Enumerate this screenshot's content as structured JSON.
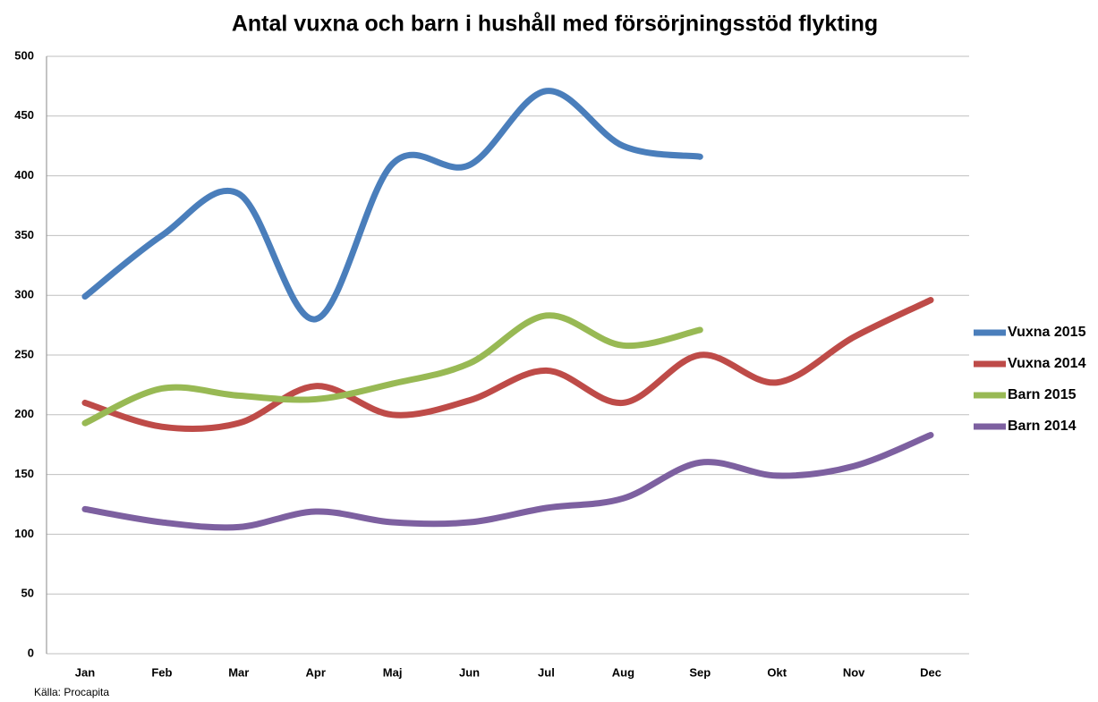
{
  "chart_data": {
    "type": "line",
    "title": "Antal vuxna och barn i hushåll med försörjningsstöd flykting",
    "source": "Källa: Procapita",
    "categories": [
      "Jan",
      "Feb",
      "Mar",
      "Apr",
      "Maj",
      "Jun",
      "Jul",
      "Aug",
      "Sep",
      "Okt",
      "Nov",
      "Dec"
    ],
    "series": [
      {
        "name": "Vuxna 2015",
        "color": "#4a7ebb",
        "values": [
          299,
          350,
          385,
          280,
          410,
          409,
          471,
          425,
          416,
          null,
          null,
          null
        ]
      },
      {
        "name": "Vuxna 2014",
        "color": "#be4b48",
        "values": [
          210,
          190,
          193,
          224,
          200,
          212,
          237,
          210,
          250,
          227,
          265,
          296
        ]
      },
      {
        "name": "Barn 2015",
        "color": "#98b954",
        "values": [
          193,
          222,
          216,
          213,
          226,
          243,
          283,
          258,
          271,
          null,
          null,
          null
        ]
      },
      {
        "name": "Barn 2014",
        "color": "#7d60a0",
        "values": [
          121,
          110,
          106,
          119,
          110,
          110,
          122,
          130,
          160,
          149,
          157,
          183
        ]
      }
    ],
    "ylim": [
      0,
      500
    ],
    "yticks": [
      0,
      50,
      100,
      150,
      200,
      250,
      300,
      350,
      400,
      450,
      500
    ],
    "grid": true,
    "smooth": true,
    "legend": "right"
  }
}
